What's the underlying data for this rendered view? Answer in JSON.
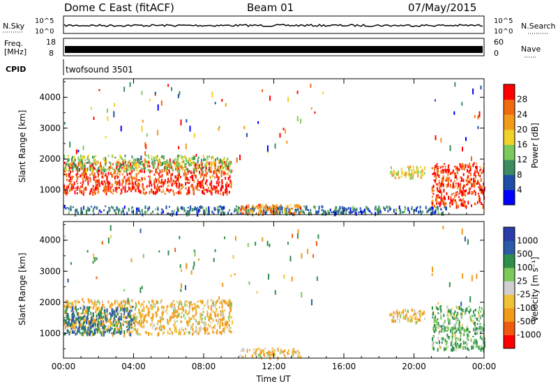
{
  "header": {
    "title": "Dome C East (fitACF)",
    "beam": "Beam 01",
    "date": "07/May/2015"
  },
  "top_panels": {
    "nsky_label": "N.Sky",
    "nsky_ticks": [
      "10^5",
      "10^0"
    ],
    "nsearch_label": "N.Search",
    "freq_label_1": "Freq.",
    "freq_label_2": "[MHz]",
    "freq_ticks": [
      "18",
      "8"
    ],
    "nave_label": "Nave",
    "nave_ticks": [
      "60",
      "0"
    ],
    "cpid_label": "CPID",
    "cpid_value": "twofsound 3501"
  },
  "colors": {
    "power_scale": [
      "#0000ff",
      "#1f4ea8",
      "#3c8c60",
      "#7cc95c",
      "#f0d22a",
      "#f39a1b",
      "#f06a10",
      "#ff0000"
    ],
    "velocity_scale": [
      "#ff0000",
      "#f05a0f",
      "#f39a1b",
      "#f0c23a",
      "#cfcfcf",
      "#7cc95c",
      "#2f8f4a",
      "#2a5aa8",
      "#2a3caa"
    ]
  },
  "chart_data": [
    {
      "type": "heatmap",
      "title": "",
      "xlabel": "Time UT",
      "ylabel": "Slant Range [km]",
      "x_ticks": [
        "00:00",
        "04:00",
        "08:00",
        "12:00",
        "16:00",
        "20:00",
        "00:00"
      ],
      "y_ticks": [
        "1000",
        "2000",
        "3000",
        "4000"
      ],
      "ylim": [
        200,
        4600
      ],
      "colorbar_label": "Power [dB]",
      "colorbar_ticks": [
        "4",
        "8",
        "12",
        "16",
        "20",
        "24",
        "28"
      ],
      "clim": [
        0,
        32
      ],
      "echo_regions": [
        {
          "t_start": 0.0,
          "t_end": 9.6,
          "range_low": 900,
          "range_high": 1950,
          "value": 28
        },
        {
          "t_start": 0.0,
          "t_end": 9.6,
          "range_low": 1650,
          "range_high": 2150,
          "value": 14
        },
        {
          "t_start": 0.0,
          "t_end": 22.0,
          "range_low": 250,
          "range_high": 500,
          "value": 8
        },
        {
          "t_start": 10.0,
          "t_end": 13.5,
          "range_low": 250,
          "range_high": 550,
          "value": 24
        },
        {
          "t_start": 18.6,
          "t_end": 20.6,
          "range_low": 1400,
          "range_high": 1800,
          "value": 18
        },
        {
          "t_start": 21.0,
          "t_end": 24.0,
          "range_low": 500,
          "range_high": 1900,
          "value": 28
        }
      ]
    },
    {
      "type": "heatmap",
      "title": "",
      "xlabel": "Time UT",
      "ylabel": "Slant Range [km]",
      "x_ticks": [
        "00:00",
        "04:00",
        "08:00",
        "12:00",
        "16:00",
        "20:00",
        "00:00"
      ],
      "y_ticks": [
        "1000",
        "2000",
        "3000",
        "4000"
      ],
      "ylim": [
        200,
        4600
      ],
      "colorbar_label": "Velocity [m s⁻¹]",
      "colorbar_ticks": [
        "1000",
        "500",
        "100",
        "25",
        "-25",
        "-100",
        "-500",
        "-1000"
      ],
      "echo_regions": [
        {
          "t_start": 0.0,
          "t_end": 9.6,
          "range_low": 1000,
          "range_high": 2100,
          "value": -100
        },
        {
          "t_start": 0.0,
          "t_end": 4.0,
          "range_low": 1000,
          "range_high": 1900,
          "value": 500
        },
        {
          "t_start": 10.0,
          "t_end": 13.5,
          "range_low": 250,
          "range_high": 550,
          "value": -100
        },
        {
          "t_start": 18.6,
          "t_end": 20.6,
          "range_low": 1400,
          "range_high": 1800,
          "value": -100
        },
        {
          "t_start": 21.0,
          "t_end": 24.0,
          "range_low": 500,
          "range_high": 1900,
          "value": 100
        }
      ]
    }
  ]
}
